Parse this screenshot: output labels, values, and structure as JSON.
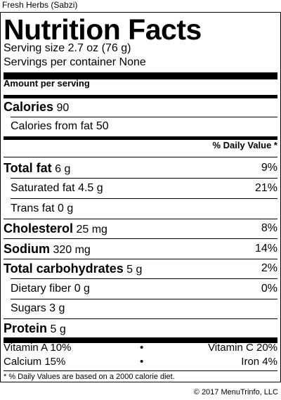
{
  "product_name": "Fresh Herbs (Sabzi)",
  "header": {
    "title": "Nutrition Facts",
    "serving_size": "Serving size 2.7 oz (76 g)",
    "servings_per_container": "Servings per container None"
  },
  "amount_per_serving": "Amount per serving",
  "calories": {
    "label": "Calories",
    "value": "90"
  },
  "calories_from_fat": {
    "label": "Calories from fat",
    "value": "50"
  },
  "daily_value_header": "% Daily Value *",
  "nutrients": [
    {
      "label": "Total fat",
      "amount": "6 g",
      "dv": "9%"
    },
    {
      "label": "Saturated fat",
      "amount": "4.5 g",
      "dv": "21%"
    },
    {
      "label": "Trans fat",
      "amount": "0 g",
      "dv": ""
    },
    {
      "label": "Cholesterol",
      "amount": "25 mg",
      "dv": "8%"
    },
    {
      "label": "Sodium",
      "amount": "320 mg",
      "dv": "14%"
    },
    {
      "label": "Total carbohydrates",
      "amount": "5 g",
      "dv": "2%"
    },
    {
      "label": "Dietary fiber",
      "amount": "0 g",
      "dv": "0%"
    },
    {
      "label": "Sugars",
      "amount": "3 g",
      "dv": ""
    },
    {
      "label": "Protein",
      "amount": "5 g",
      "dv": ""
    }
  ],
  "vitamins": [
    {
      "left": "Vitamin A 10%",
      "right": "Vitamin C 20%"
    },
    {
      "left": "Calcium 15%",
      "right": "Iron 4%"
    }
  ],
  "bullet": "•",
  "footnote": "* % Daily Values are based on a 2000 calorie diet.",
  "copyright": "© 2017 MenuTrinfo, LLC"
}
